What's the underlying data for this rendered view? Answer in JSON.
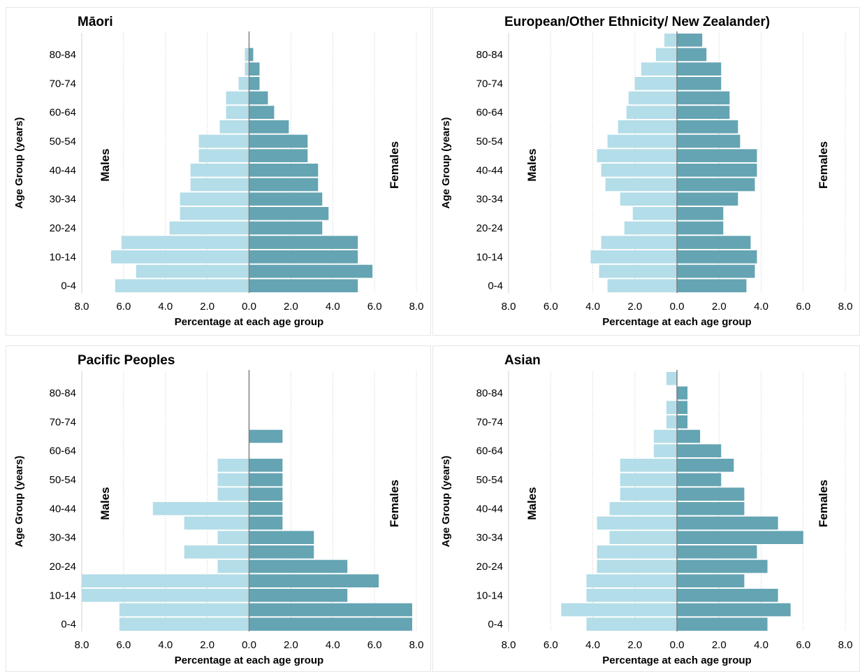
{
  "colors": {
    "males": "#b3dde8",
    "females": "#64a4b3",
    "grid": "#c8c8c8",
    "axis": "#808080"
  },
  "chart_data": [
    {
      "type": "bar",
      "title": "Māori",
      "xlabel": "Percentage at each age group",
      "ylabel": "Age Group (years)",
      "xlim": [
        -8,
        8
      ],
      "x_ticks": [
        "8.0",
        "6.0",
        "4.0",
        "2.0",
        "0.0",
        "2.0",
        "4.0",
        "6.0",
        "8.0"
      ],
      "categories": [
        "0-4",
        "5-9",
        "10-14",
        "15-19",
        "20-24",
        "25-29",
        "30-34",
        "35-39",
        "40-44",
        "45-49",
        "50-54",
        "55-59",
        "60-64",
        "65-69",
        "70-74",
        "75-79",
        "80-84",
        "85+"
      ],
      "y_tick_labels": [
        "0-4",
        "10-14",
        "20-24",
        "30-34",
        "40-44",
        "50-54",
        "60-64",
        "70-74",
        "80-84"
      ],
      "males_label": "Males",
      "females_label": "Females",
      "males": [
        6.4,
        5.4,
        6.6,
        6.1,
        3.8,
        3.3,
        3.3,
        2.8,
        2.8,
        2.4,
        2.4,
        1.4,
        1.1,
        1.1,
        0.5,
        0.2,
        0.2,
        0
      ],
      "females": [
        5.2,
        5.9,
        5.2,
        5.2,
        3.5,
        3.8,
        3.5,
        3.3,
        3.3,
        2.8,
        2.8,
        1.9,
        1.2,
        0.9,
        0.5,
        0.5,
        0.2,
        0
      ]
    },
    {
      "type": "bar",
      "title": "European/Other Ethnicity/ New Zealander)",
      "xlabel": "Percentage at each age group",
      "ylabel": "Age Group (years)",
      "xlim": [
        -8,
        8
      ],
      "x_ticks": [
        "8.0",
        "6.0",
        "4.0",
        "2.0",
        "0.0",
        "2.0",
        "4.0",
        "6.0",
        "8.0"
      ],
      "categories": [
        "0-4",
        "5-9",
        "10-14",
        "15-19",
        "20-24",
        "25-29",
        "30-34",
        "35-39",
        "40-44",
        "45-49",
        "50-54",
        "55-59",
        "60-64",
        "65-69",
        "70-74",
        "75-79",
        "80-84",
        "85+"
      ],
      "y_tick_labels": [
        "0-4",
        "10-14",
        "20-24",
        "30-34",
        "40-44",
        "50-54",
        "60-64",
        "70-74",
        "80-84"
      ],
      "males_label": "Males",
      "females_label": "Females",
      "males": [
        3.3,
        3.7,
        4.1,
        3.6,
        2.5,
        2.1,
        2.7,
        3.4,
        3.6,
        3.8,
        3.3,
        2.8,
        2.4,
        2.3,
        2.0,
        1.7,
        1.0,
        0.6
      ],
      "females": [
        3.3,
        3.7,
        3.8,
        3.5,
        2.2,
        2.2,
        2.9,
        3.7,
        3.8,
        3.8,
        3.0,
        2.9,
        2.5,
        2.5,
        2.1,
        2.1,
        1.4,
        1.2
      ]
    },
    {
      "type": "bar",
      "title": "Pacific Peoples",
      "xlabel": "Percentage at each age group",
      "ylabel": "Age Group (years)",
      "xlim": [
        -8,
        8
      ],
      "x_ticks": [
        "8.0",
        "6.0",
        "4.0",
        "2.0",
        "0.0",
        "2.0",
        "4.0",
        "6.0",
        "8.0"
      ],
      "categories": [
        "0-4",
        "5-9",
        "10-14",
        "15-19",
        "20-24",
        "25-29",
        "30-34",
        "35-39",
        "40-44",
        "45-49",
        "50-54",
        "55-59",
        "60-64",
        "65-69",
        "70-74",
        "75-79",
        "80-84",
        "85+"
      ],
      "y_tick_labels": [
        "0-4",
        "10-14",
        "20-24",
        "30-34",
        "40-44",
        "50-54",
        "60-64",
        "70-74",
        "80-84"
      ],
      "males_label": "Males",
      "females_label": "Females",
      "males": [
        6.2,
        6.2,
        8.0,
        8.0,
        1.5,
        3.1,
        1.5,
        3.1,
        4.6,
        1.5,
        1.5,
        1.5,
        0,
        0,
        0,
        0,
        0,
        0
      ],
      "females": [
        7.8,
        7.8,
        4.7,
        6.2,
        4.7,
        3.1,
        3.1,
        1.6,
        1.6,
        1.6,
        1.6,
        1.6,
        0,
        1.6,
        0,
        0,
        0,
        0
      ]
    },
    {
      "type": "bar",
      "title": "Asian",
      "xlabel": "Percentage at each age group",
      "ylabel": "Age Group (years)",
      "xlim": [
        -8,
        8
      ],
      "x_ticks": [
        "8.0",
        "6.0",
        "4.0",
        "2.0",
        "0.0",
        "2.0",
        "4.0",
        "6.0",
        "8.0"
      ],
      "categories": [
        "0-4",
        "5-9",
        "10-14",
        "15-19",
        "20-24",
        "25-29",
        "30-34",
        "35-39",
        "40-44",
        "45-49",
        "50-54",
        "55-59",
        "60-64",
        "65-69",
        "70-74",
        "75-79",
        "80-84",
        "85+"
      ],
      "y_tick_labels": [
        "0-4",
        "10-14",
        "20-24",
        "30-34",
        "40-44",
        "50-54",
        "60-64",
        "70-74",
        "80-84"
      ],
      "males_label": "Males",
      "females_label": "Females",
      "males": [
        4.3,
        5.5,
        4.3,
        4.3,
        3.8,
        3.8,
        3.2,
        3.8,
        3.2,
        2.7,
        2.7,
        2.7,
        1.1,
        1.1,
        0.5,
        0.5,
        0,
        0.5
      ],
      "females": [
        4.3,
        5.4,
        4.8,
        3.2,
        4.3,
        3.8,
        6.0,
        4.8,
        3.2,
        3.2,
        2.1,
        2.7,
        2.1,
        1.1,
        0.5,
        0.5,
        0.5,
        0
      ]
    }
  ]
}
